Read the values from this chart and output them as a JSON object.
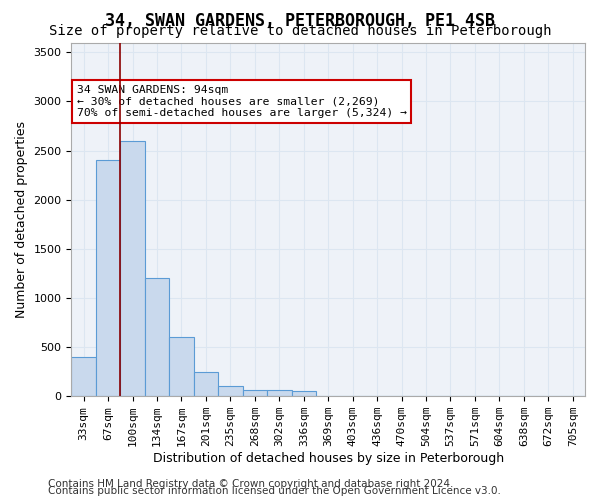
{
  "title": "34, SWAN GARDENS, PETERBOROUGH, PE1 4SB",
  "subtitle": "Size of property relative to detached houses in Peterborough",
  "xlabel": "Distribution of detached houses by size in Peterborough",
  "ylabel": "Number of detached properties",
  "categories": [
    "33sqm",
    "67sqm",
    "100sqm",
    "134sqm",
    "167sqm",
    "201sqm",
    "235sqm",
    "268sqm",
    "302sqm",
    "336sqm",
    "369sqm",
    "403sqm",
    "436sqm",
    "470sqm",
    "504sqm",
    "537sqm",
    "571sqm",
    "604sqm",
    "638sqm",
    "672sqm",
    "705sqm"
  ],
  "values": [
    400,
    2400,
    2600,
    1200,
    600,
    250,
    100,
    60,
    60,
    50,
    0,
    0,
    0,
    0,
    0,
    0,
    0,
    0,
    0,
    0,
    0
  ],
  "bar_color": "#c9d9ed",
  "bar_edge_color": "#5b9bd5",
  "property_line_x": 2,
  "property_line_color": "#8b0000",
  "annotation_text": "34 SWAN GARDENS: 94sqm\n← 30% of detached houses are smaller (2,269)\n70% of semi-detached houses are larger (5,324) →",
  "annotation_box_color": "#ffffff",
  "annotation_box_edge_color": "#cc0000",
  "ylim": [
    0,
    3600
  ],
  "yticks": [
    0,
    500,
    1000,
    1500,
    2000,
    2500,
    3000,
    3500
  ],
  "footer_line1": "Contains HM Land Registry data © Crown copyright and database right 2024.",
  "footer_line2": "Contains public sector information licensed under the Open Government Licence v3.0.",
  "bg_color": "#ffffff",
  "grid_color": "#dce6f1",
  "title_fontsize": 12,
  "subtitle_fontsize": 10,
  "axis_label_fontsize": 9,
  "tick_fontsize": 8,
  "footer_fontsize": 7.5
}
